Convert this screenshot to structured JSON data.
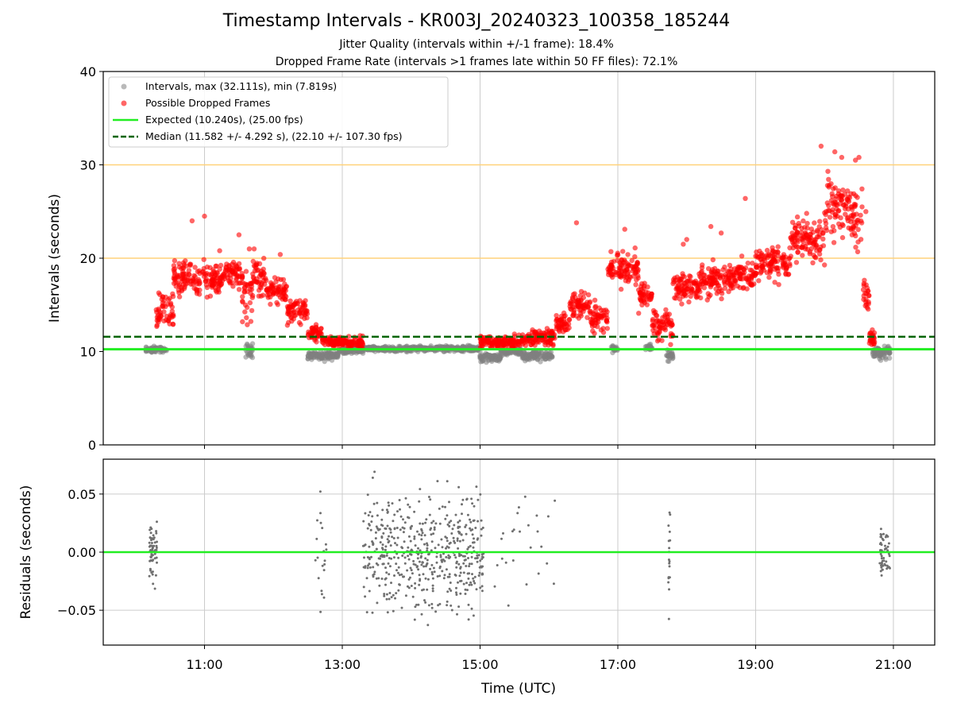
{
  "chart_data": {
    "title": "Timestamp Intervals - KR003J_20240323_100358_185244",
    "subtitle_lines": [
      "Jitter Quality (intervals within +/-1 frame): 18.4%",
      "Dropped Frame Rate (intervals >1 frames late within 50 FF files): 72.1%"
    ],
    "xlabel": "Time (UTC)",
    "x_ticks": [
      {
        "hour": 11,
        "label": "11:00"
      },
      {
        "hour": 13,
        "label": "13:00"
      },
      {
        "hour": 15,
        "label": "15:00"
      },
      {
        "hour": 17,
        "label": "17:00"
      },
      {
        "hour": 19,
        "label": "19:00"
      },
      {
        "hour": 21,
        "label": "21:00"
      }
    ],
    "xlim_hours": [
      9.53,
      21.6
    ],
    "top_panel": {
      "type": "scatter",
      "ylabel": "Intervals (seconds)",
      "ylim": [
        0,
        40
      ],
      "y_ticks": [
        0,
        10,
        20,
        30,
        40
      ],
      "threshold_lines": [
        20,
        30
      ],
      "expected_value": 10.24,
      "median_value": 11.582,
      "legend": [
        {
          "label": "Intervals, max (32.111s), min (7.819s)",
          "kind": "gray-dot"
        },
        {
          "label": "Possible Dropped Frames",
          "kind": "red-dot"
        },
        {
          "label": "Expected (10.240s), (25.00 fps)",
          "kind": "green-line"
        },
        {
          "label": "Median (11.582 +/- 4.292 s), (22.10 +/- 107.30 fps)",
          "kind": "dark-green-dashed"
        }
      ],
      "gray_segments": [
        [
          10.15,
          10.45,
          10.2,
          0.3
        ],
        [
          11.6,
          11.7,
          10.0,
          0.7
        ],
        [
          12.5,
          12.95,
          9.6,
          0.4
        ],
        [
          12.95,
          13.3,
          10.1,
          0.3
        ],
        [
          13.3,
          15.0,
          10.3,
          0.25
        ],
        [
          15.0,
          15.3,
          9.4,
          0.4
        ],
        [
          15.3,
          15.6,
          10.0,
          0.3
        ],
        [
          15.6,
          16.05,
          9.6,
          0.4
        ],
        [
          16.9,
          17.0,
          10.3,
          0.3
        ],
        [
          17.4,
          17.5,
          10.4,
          0.3
        ],
        [
          17.7,
          17.8,
          9.5,
          0.5
        ],
        [
          20.7,
          20.95,
          9.9,
          0.6
        ]
      ],
      "red_segments": [
        [
          10.3,
          10.55,
          14.5,
          2.0
        ],
        [
          10.55,
          11.3,
          17.8,
          1.6
        ],
        [
          11.3,
          11.55,
          18.5,
          1.3
        ],
        [
          11.55,
          11.7,
          16.0,
          2.5
        ],
        [
          11.7,
          11.9,
          18.0,
          1.8
        ],
        [
          11.9,
          12.2,
          16.5,
          1.2
        ],
        [
          12.2,
          12.5,
          14.5,
          1.2
        ],
        [
          12.5,
          12.7,
          12.0,
          0.7
        ],
        [
          12.7,
          13.3,
          11.0,
          0.5
        ],
        [
          15.0,
          15.6,
          11.0,
          0.6
        ],
        [
          15.6,
          16.1,
          11.5,
          0.7
        ],
        [
          16.1,
          16.3,
          13.0,
          1.0
        ],
        [
          16.3,
          16.6,
          15.0,
          1.3
        ],
        [
          16.6,
          16.85,
          13.5,
          1.3
        ],
        [
          16.85,
          17.3,
          19.0,
          1.6
        ],
        [
          17.3,
          17.5,
          16.0,
          1.2
        ],
        [
          17.5,
          17.8,
          13.0,
          1.4
        ],
        [
          17.8,
          18.2,
          17.0,
          1.3
        ],
        [
          18.2,
          18.6,
          17.5,
          1.5
        ],
        [
          18.6,
          19.0,
          18.0,
          1.3
        ],
        [
          19.0,
          19.5,
          19.5,
          1.6
        ],
        [
          19.5,
          20.0,
          22.0,
          2.2
        ],
        [
          20.0,
          20.4,
          25.5,
          2.6
        ],
        [
          20.4,
          20.55,
          24.0,
          2.5
        ],
        [
          20.55,
          20.65,
          16.0,
          2.5
        ],
        [
          20.65,
          20.75,
          11.5,
          0.8
        ]
      ],
      "red_extra_points": [
        [
          10.82,
          24.0
        ],
        [
          11.0,
          24.5
        ],
        [
          11.5,
          22.5
        ],
        [
          16.4,
          23.8
        ],
        [
          17.1,
          23.1
        ],
        [
          18.35,
          23.4
        ],
        [
          18.85,
          26.4
        ],
        [
          19.95,
          32.0
        ],
        [
          20.05,
          29.3
        ],
        [
          20.15,
          31.4
        ],
        [
          20.25,
          30.8
        ],
        [
          20.45,
          30.5
        ],
        [
          20.5,
          30.8
        ],
        [
          11.22,
          20.8
        ],
        [
          12.1,
          20.4
        ],
        [
          11.65,
          21.0
        ],
        [
          11.72,
          21.0
        ],
        [
          17.25,
          21.1
        ],
        [
          17.95,
          21.5
        ],
        [
          18.0,
          22.0
        ],
        [
          18.5,
          22.7
        ],
        [
          20.6,
          25.0
        ]
      ]
    },
    "bottom_panel": {
      "type": "scatter",
      "ylabel": "Residuals (seconds)",
      "ylim": [
        -0.08,
        0.08
      ],
      "y_ticks": [
        -0.05,
        0.0,
        0.05
      ],
      "y_tick_labels": [
        "−0.05",
        "0.00",
        "0.05"
      ],
      "zero_line": 0.0,
      "clusters": [
        [
          10.2,
          0.12,
          60,
          0.04
        ],
        [
          12.6,
          0.18,
          20,
          0.08
        ],
        [
          13.3,
          1.75,
          520,
          0.08
        ],
        [
          15.2,
          0.9,
          25,
          0.08
        ],
        [
          17.73,
          0.03,
          18,
          0.07
        ],
        [
          20.8,
          0.15,
          55,
          0.04
        ]
      ]
    }
  }
}
